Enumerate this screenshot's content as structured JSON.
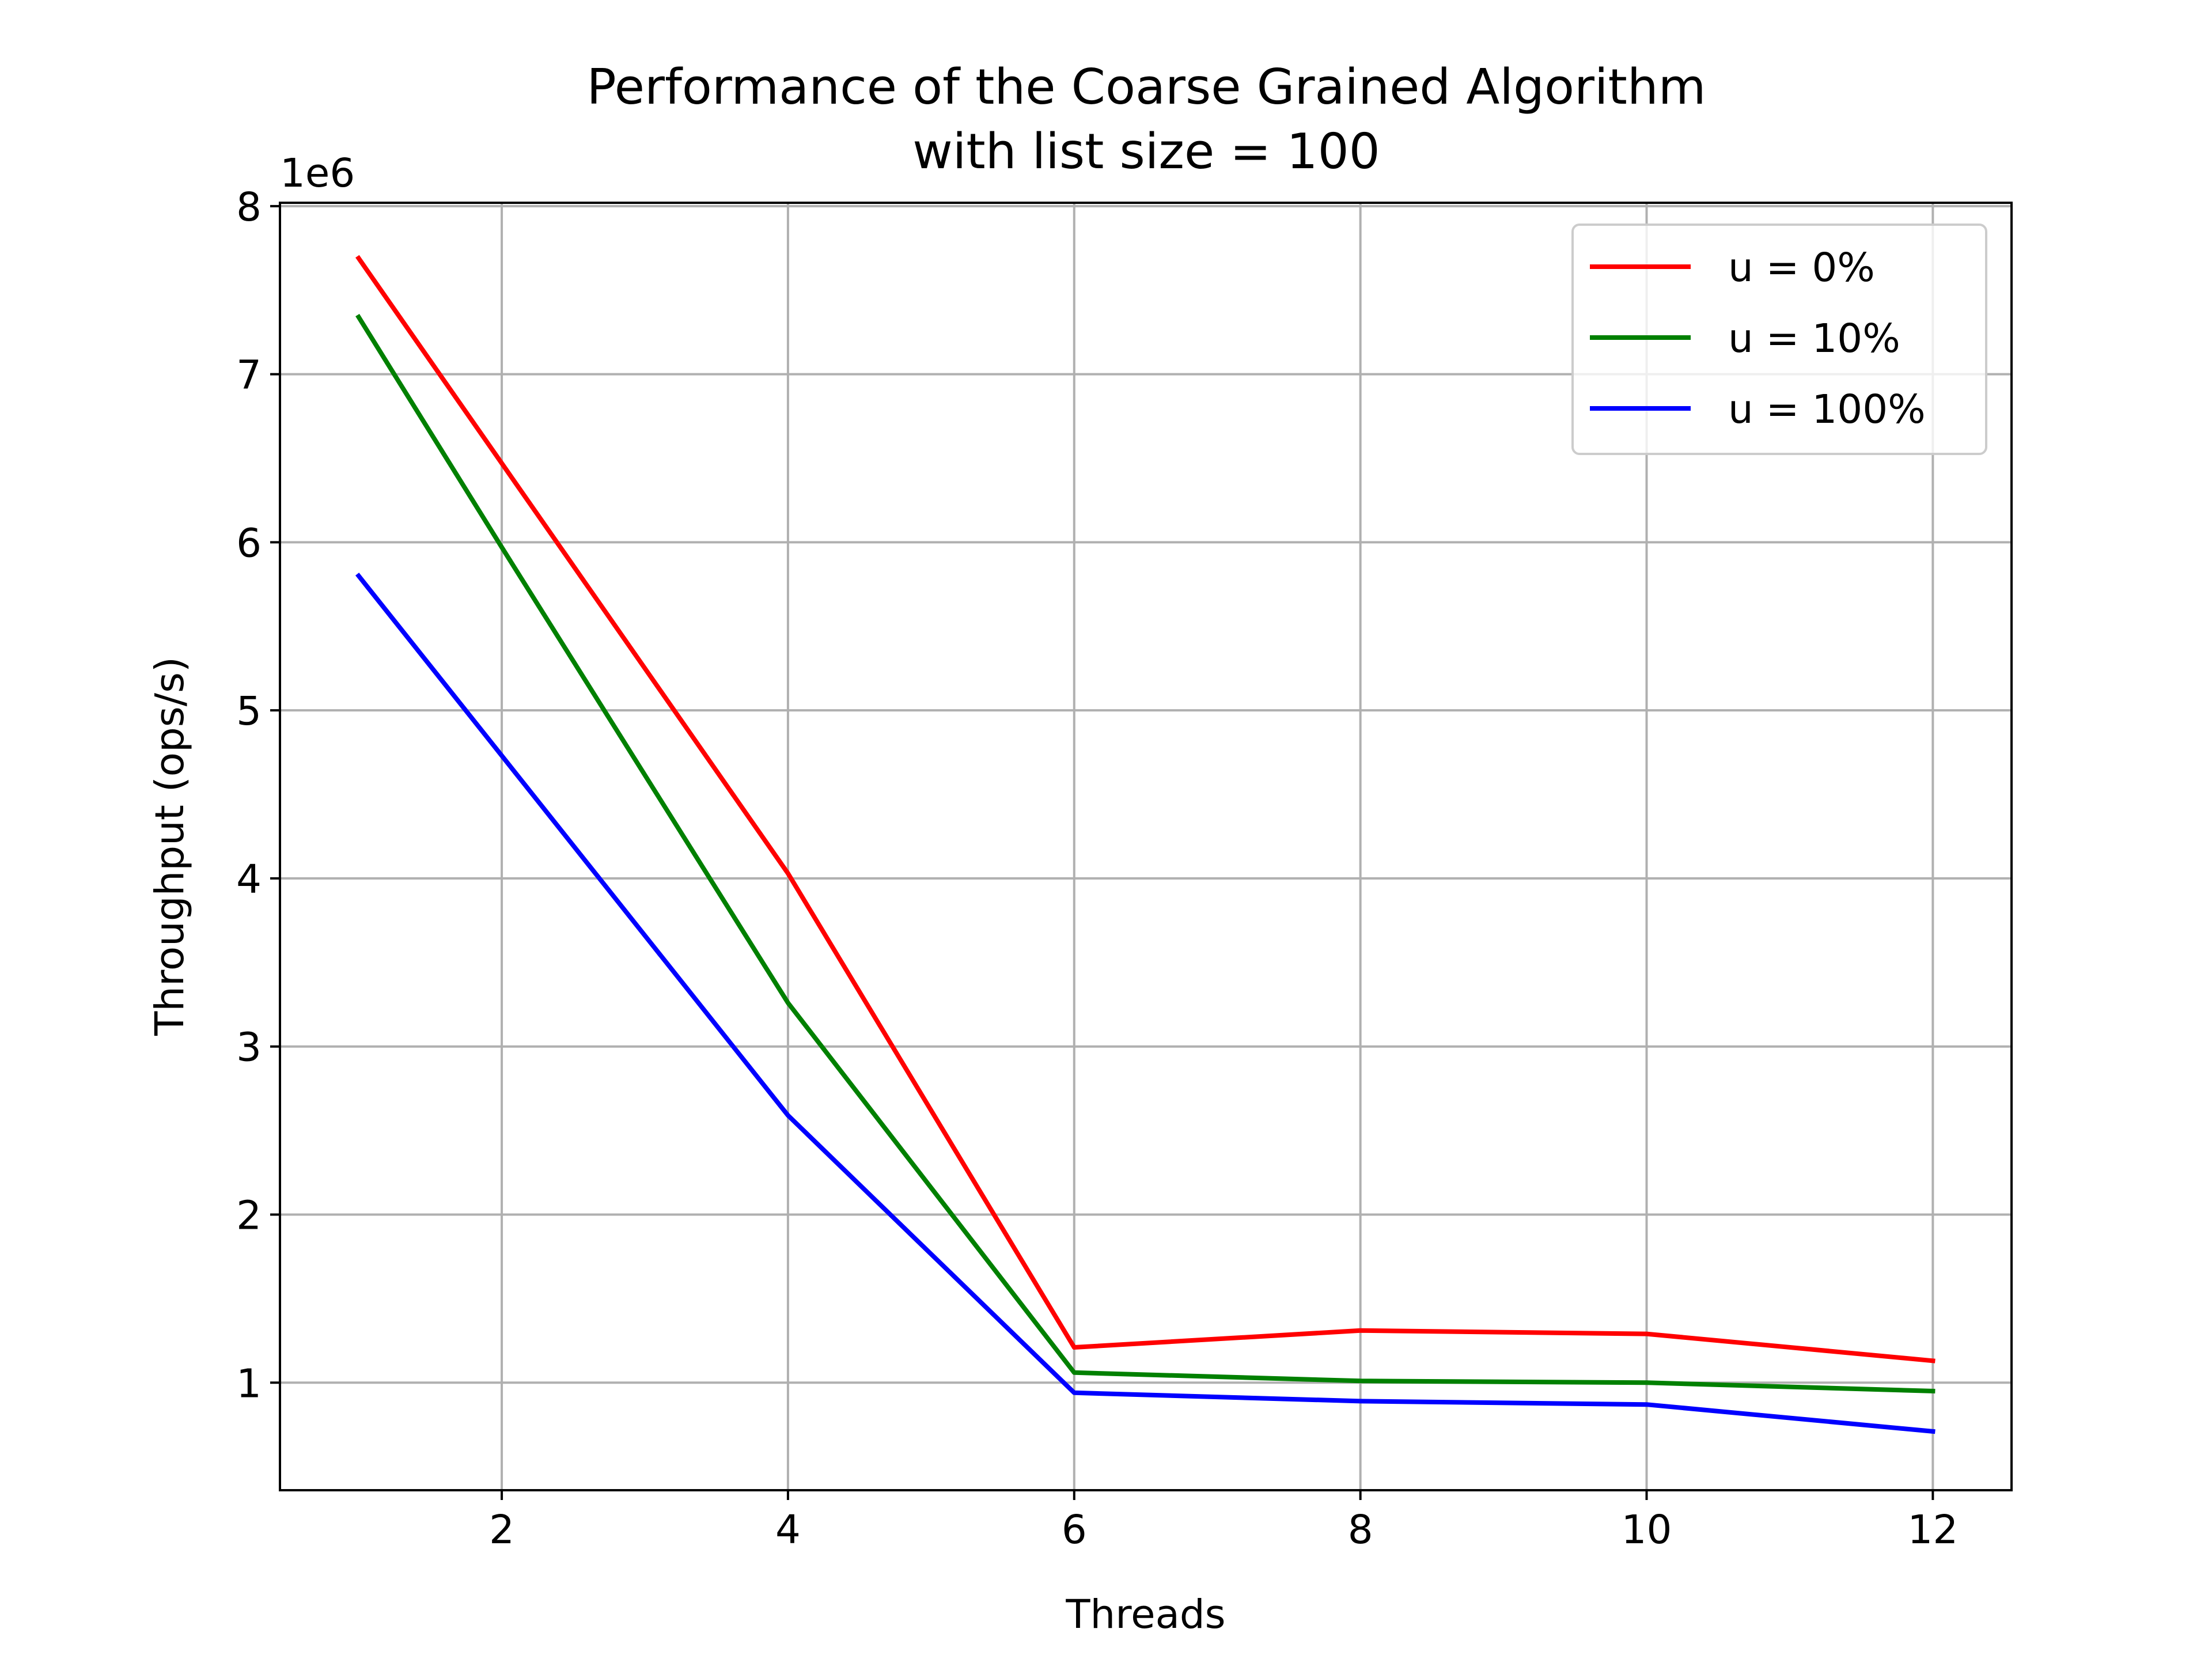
{
  "chart_data": {
    "type": "line",
    "title": [
      "Performance of the Coarse Grained Algorithm",
      "with list size = 100"
    ],
    "xlabel": "Threads",
    "ylabel": "Throughput (ops/s)",
    "y_offset_label": "1e6",
    "xlim": [
      0.45,
      12.55
    ],
    "ylim": [
      0.36,
      8.02
    ],
    "xticks": [
      2,
      4,
      6,
      8,
      10,
      12
    ],
    "xtick_labels": [
      "2",
      "4",
      "6",
      "8",
      "10",
      "12"
    ],
    "yticks": [
      1,
      2,
      3,
      4,
      5,
      6,
      7,
      8
    ],
    "ytick_labels": [
      "1",
      "2",
      "3",
      "4",
      "5",
      "6",
      "7",
      "8"
    ],
    "grid": true,
    "legend_position": "top-right",
    "x": [
      1,
      2,
      4,
      6,
      8,
      10,
      12
    ],
    "series": [
      {
        "name": "u = 0%",
        "color": "#ff0000",
        "values": [
          7.69,
          6.47,
          4.03,
          1.21,
          1.31,
          1.29,
          1.13
        ]
      },
      {
        "name": "u = 10%",
        "color": "#008000",
        "values": [
          7.34,
          5.97,
          3.26,
          1.06,
          1.01,
          1.0,
          0.95
        ]
      },
      {
        "name": "u = 100%",
        "color": "#0000ff",
        "values": [
          5.8,
          4.73,
          2.59,
          0.94,
          0.89,
          0.87,
          0.71
        ]
      }
    ]
  }
}
